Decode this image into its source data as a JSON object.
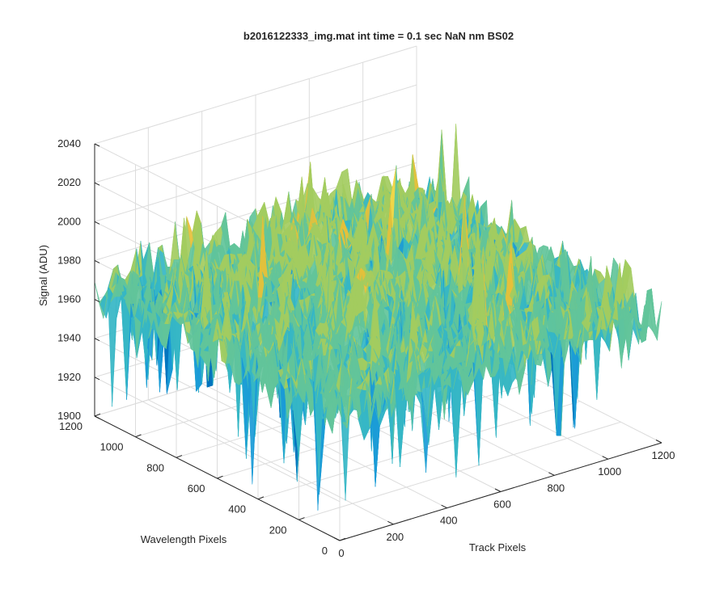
{
  "chart_data": {
    "type": "surface",
    "title": "b2016122333_img.mat int time = 0.1 sec  NaN nm BS02",
    "xlabel": "Track Pixels",
    "ylabel": "Wavelength Pixels",
    "zlabel": "Signal (ADU)",
    "xlim": [
      0,
      1200
    ],
    "ylim": [
      0,
      1200
    ],
    "zlim": [
      1900,
      2040
    ],
    "x_ticks": [
      "0",
      "200",
      "400",
      "600",
      "800",
      "1000",
      "1200"
    ],
    "y_ticks": [
      "0",
      "200",
      "400",
      "600",
      "800",
      "1000",
      "1200"
    ],
    "z_ticks": [
      "1900",
      "1920",
      "1940",
      "1960",
      "1980",
      "2000",
      "2020",
      "2040"
    ],
    "grid": true,
    "surface": {
      "mean_level": 1965,
      "typical_range": [
        1930,
        2000
      ],
      "min_spike": 1905,
      "max_spike": 2025,
      "colormap": [
        "#0072BD",
        "#1A9BD7",
        "#35B6C5",
        "#62C49A",
        "#A3CC5F",
        "#E6C03A",
        "#F1D84A"
      ]
    }
  }
}
